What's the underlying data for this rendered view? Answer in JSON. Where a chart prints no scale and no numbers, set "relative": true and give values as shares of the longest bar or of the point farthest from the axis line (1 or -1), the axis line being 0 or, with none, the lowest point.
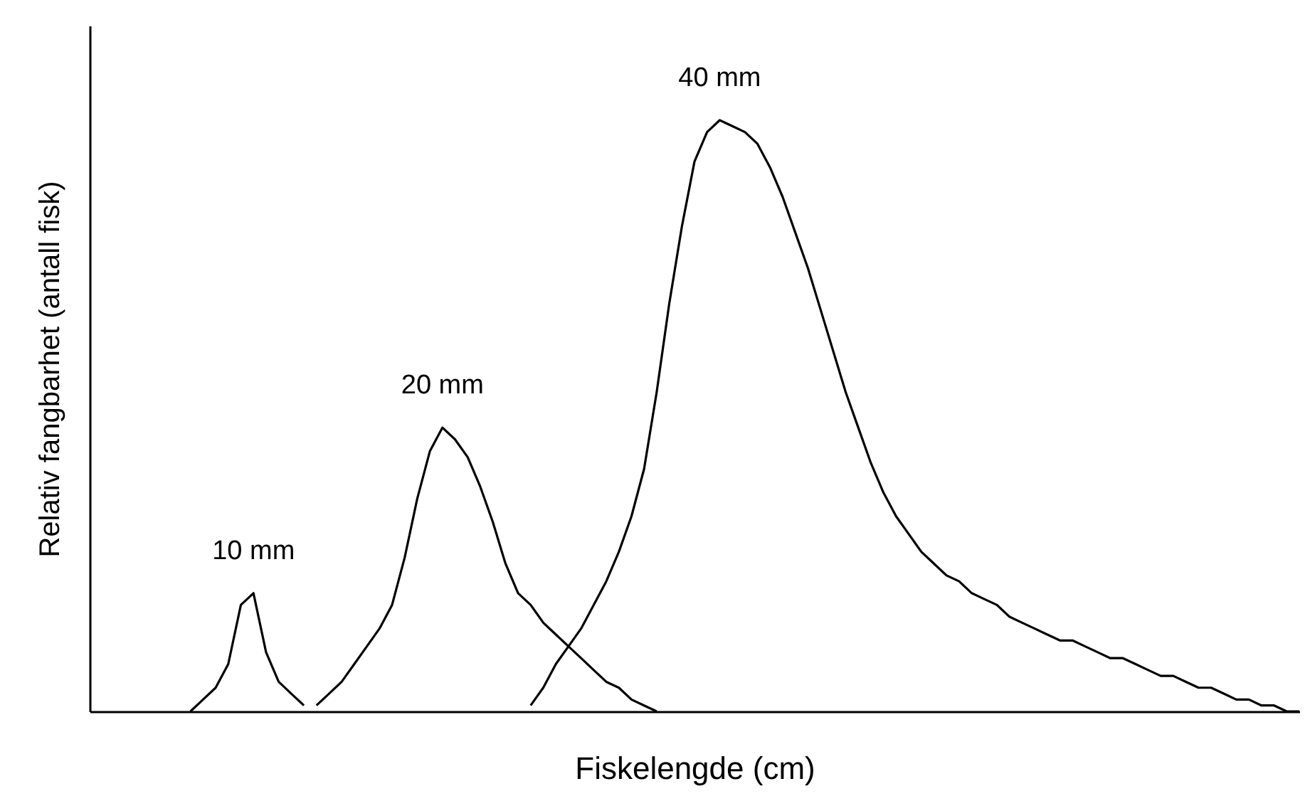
{
  "chart_data": {
    "type": "line",
    "relative": true,
    "xlabel": "Fiskelengde (cm)",
    "ylabel": "Relativ fangbarhet (antall fisk)",
    "grid": false,
    "tick_labels": false,
    "marker": "none",
    "line_style": "solid",
    "categories": [
      null,
      null,
      null,
      null,
      null,
      null,
      null,
      null,
      null,
      null,
      null,
      null,
      null,
      null,
      null,
      null,
      null,
      null,
      null,
      null,
      null,
      null,
      null,
      null,
      null,
      null,
      null,
      null,
      null,
      null,
      null,
      null,
      null,
      null,
      null,
      null,
      null,
      null,
      null,
      null,
      null,
      null,
      null,
      null,
      null,
      null,
      null,
      null,
      null,
      null,
      null,
      null,
      null,
      null,
      null,
      null,
      null,
      null,
      null,
      null,
      null,
      null,
      null,
      null,
      null,
      null,
      null,
      null,
      null,
      null,
      null,
      null,
      null,
      null,
      null,
      null,
      null,
      null,
      null,
      null,
      null,
      null,
      null,
      null,
      null,
      null,
      null,
      null,
      null,
      null,
      null,
      null,
      null,
      null,
      null,
      null,
      null
    ],
    "series": [
      {
        "name": "10 mm",
        "color": "#000000",
        "values": [
          null,
          null,
          null,
          null,
          null,
          null,
          null,
          null,
          0,
          0.02,
          0.04,
          0.08,
          0.18,
          0.2,
          0.1,
          0.05,
          0.03,
          0.01,
          null,
          null,
          null,
          null,
          null,
          null,
          null,
          null,
          null,
          null,
          null,
          null,
          null,
          null,
          null,
          null,
          null,
          null,
          null,
          null,
          null,
          null,
          null,
          null,
          null,
          null,
          null,
          null,
          null,
          null,
          null,
          null,
          null,
          null,
          null,
          null,
          null,
          null,
          null,
          null,
          null,
          null,
          null,
          null,
          null,
          null,
          null,
          null,
          null,
          null,
          null,
          null,
          null,
          null,
          null,
          null,
          null,
          null,
          null,
          null,
          null,
          null,
          null,
          null,
          null,
          null,
          null,
          null,
          null,
          null,
          null,
          null,
          null,
          null,
          null,
          null,
          null,
          null,
          null
        ]
      },
      {
        "name": "20 mm",
        "color": "#000000",
        "values": [
          null,
          null,
          null,
          null,
          null,
          null,
          null,
          null,
          null,
          null,
          null,
          null,
          null,
          null,
          null,
          null,
          null,
          null,
          0.01,
          0.03,
          0.05,
          0.08,
          0.11,
          0.14,
          0.18,
          0.26,
          0.36,
          0.44,
          0.48,
          0.46,
          0.43,
          0.38,
          0.32,
          0.25,
          0.2,
          0.18,
          0.15,
          0.13,
          0.11,
          0.09,
          0.07,
          0.05,
          0.04,
          0.02,
          0.01,
          0,
          null,
          null,
          null,
          null,
          null,
          null,
          null,
          null,
          null,
          null,
          null,
          null,
          null,
          null,
          null,
          null,
          null,
          null,
          null,
          null,
          null,
          null,
          null,
          null,
          null,
          null,
          null,
          null,
          null,
          null,
          null,
          null,
          null,
          null,
          null,
          null,
          null,
          null,
          null,
          null,
          null,
          null,
          null,
          null,
          null,
          null,
          null,
          null,
          null,
          null,
          null
        ]
      },
      {
        "name": "40 mm",
        "color": "#000000",
        "values": [
          null,
          null,
          null,
          null,
          null,
          null,
          null,
          null,
          null,
          null,
          null,
          null,
          null,
          null,
          null,
          null,
          null,
          null,
          null,
          null,
          null,
          null,
          null,
          null,
          null,
          null,
          null,
          null,
          null,
          null,
          null,
          null,
          null,
          null,
          null,
          0.01,
          0.04,
          0.08,
          0.11,
          0.14,
          0.18,
          0.22,
          0.27,
          0.33,
          0.41,
          0.54,
          0.69,
          0.82,
          0.93,
          0.98,
          1.0,
          0.99,
          0.98,
          0.96,
          0.92,
          0.87,
          0.81,
          0.75,
          0.68,
          0.61,
          0.54,
          0.48,
          0.42,
          0.37,
          0.33,
          0.3,
          0.27,
          0.25,
          0.23,
          0.22,
          0.2,
          0.19,
          0.18,
          0.16,
          0.15,
          0.14,
          0.13,
          0.12,
          0.12,
          0.11,
          0.1,
          0.09,
          0.09,
          0.08,
          0.07,
          0.06,
          0.06,
          0.05,
          0.04,
          0.04,
          0.03,
          0.02,
          0.02,
          0.01,
          0.01,
          0,
          0
        ]
      }
    ]
  }
}
